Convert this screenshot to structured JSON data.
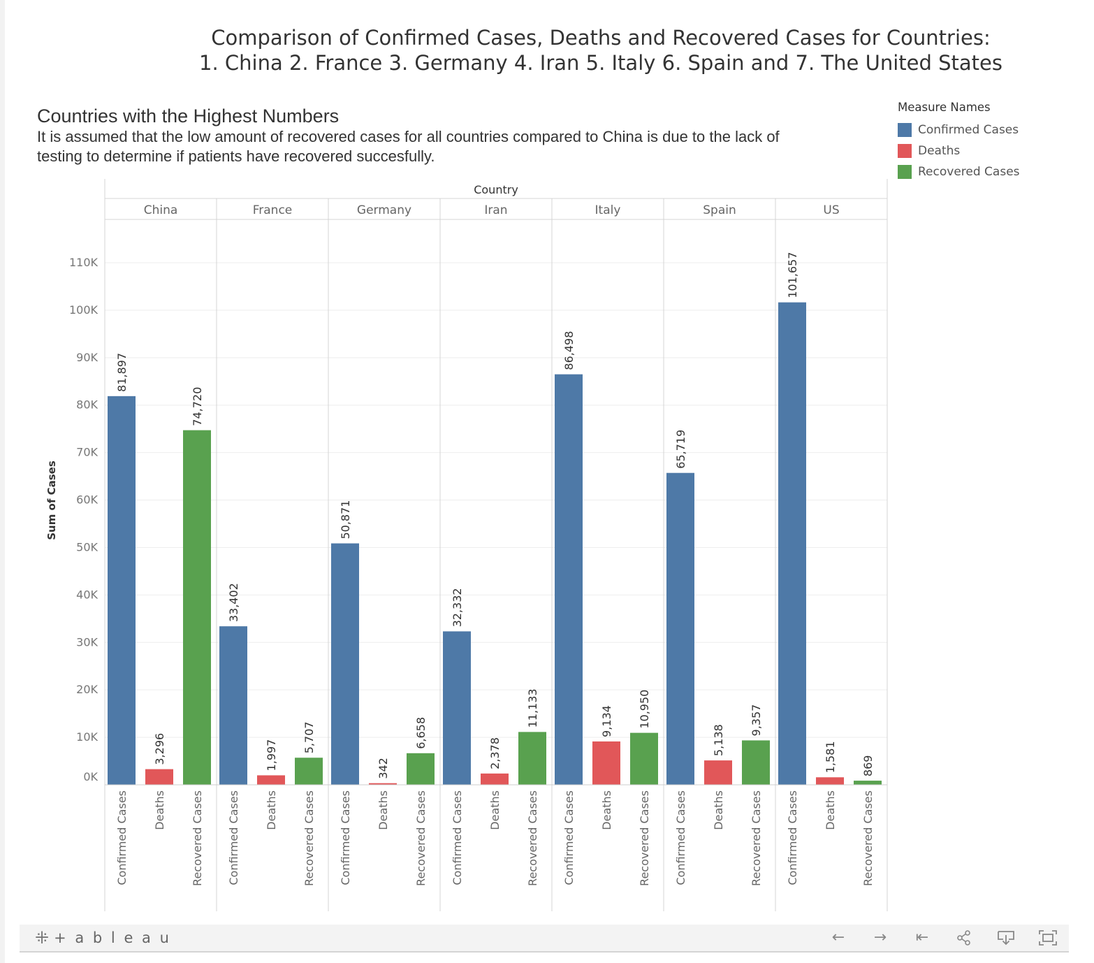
{
  "title_line1": "Comparison of Confirmed Cases, Deaths and Recovered Cases for Countries:",
  "title_line2": "1. China 2. France 3. Germany 4. Iran 5. Italy 6. Spain and 7. The United States",
  "subtitle": "Countries with the Highest Numbers",
  "note_line1": "It is assumed that the low amount of recovered cases for all countries compared to China is due to the lack of",
  "note_line2": "testing to determine if patients have recovered succesfully.",
  "legend": {
    "title": "Measure Names",
    "items": [
      {
        "label": "Confirmed Cases",
        "color": "#4e79a7"
      },
      {
        "label": "Deaths",
        "color": "#e15759"
      },
      {
        "label": "Recovered Cases",
        "color": "#59a14f"
      }
    ]
  },
  "toolbar": {
    "logo_text": "+ a b l e a u",
    "icons": [
      "undo-icon",
      "redo-icon",
      "revert-icon",
      "share-icon",
      "download-icon",
      "fullscreen-icon"
    ]
  },
  "chart_data": {
    "type": "bar",
    "column_header": "Country",
    "ylabel": "Sum of Cases",
    "ylim": [
      0,
      118000
    ],
    "yticks": [
      0,
      10000,
      20000,
      30000,
      40000,
      50000,
      60000,
      70000,
      80000,
      90000,
      100000,
      110000
    ],
    "ytick_labels": [
      "0K",
      "10K",
      "20K",
      "30K",
      "40K",
      "50K",
      "60K",
      "70K",
      "80K",
      "90K",
      "100K",
      "110K"
    ],
    "grid": true,
    "categories": [
      "China",
      "France",
      "Germany",
      "Iran",
      "Italy",
      "Spain",
      "US"
    ],
    "measures": [
      "Confirmed Cases",
      "Deaths",
      "Recovered Cases"
    ],
    "series": [
      {
        "name": "Confirmed Cases",
        "color": "#4e79a7",
        "values": [
          81897,
          33402,
          50871,
          32332,
          86498,
          65719,
          101657
        ],
        "labels": [
          "81,897",
          "33,402",
          "50,871",
          "32,332",
          "86,498",
          "65,719",
          "101,657"
        ]
      },
      {
        "name": "Deaths",
        "color": "#e15759",
        "values": [
          3296,
          1997,
          342,
          2378,
          9134,
          5138,
          1581
        ],
        "labels": [
          "3,296",
          "1,997",
          "342",
          "2,378",
          "9,134",
          "5,138",
          "1,581"
        ]
      },
      {
        "name": "Recovered Cases",
        "color": "#59a14f",
        "values": [
          74720,
          5707,
          6658,
          11133,
          10950,
          9357,
          869
        ],
        "labels": [
          "74,720",
          "5,707",
          "6,658",
          "11,133",
          "10,950",
          "9,357",
          "869"
        ]
      }
    ]
  }
}
